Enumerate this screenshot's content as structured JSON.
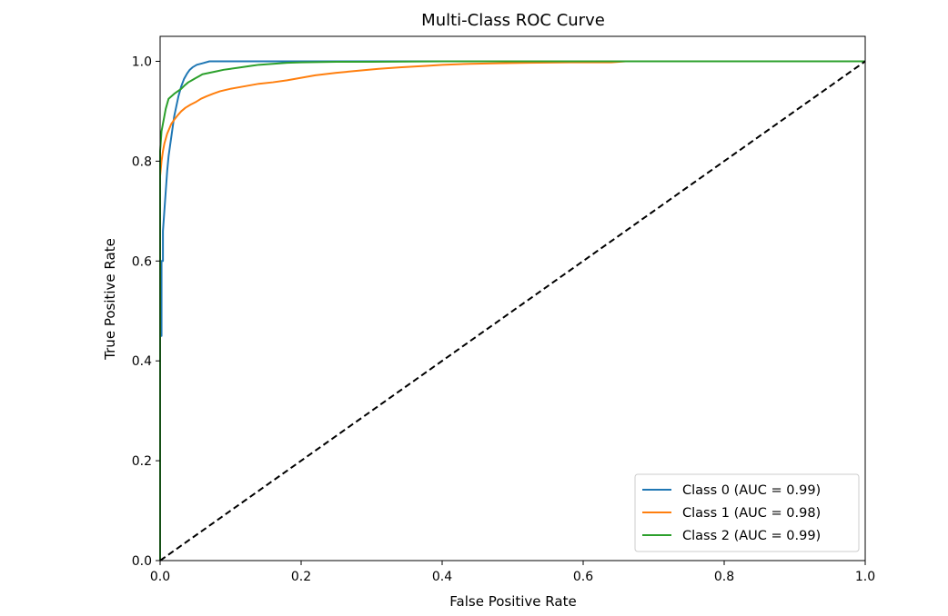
{
  "chart_data": {
    "type": "line",
    "title": "Multi-Class ROC Curve",
    "xlabel": "False Positive Rate",
    "ylabel": "True Positive Rate",
    "xlim": [
      0.0,
      1.0
    ],
    "ylim": [
      0.0,
      1.05
    ],
    "xticks": [
      "0.0",
      "0.2",
      "0.4",
      "0.6",
      "0.8",
      "1.0"
    ],
    "yticks": [
      "0.0",
      "0.2",
      "0.4",
      "0.6",
      "0.8",
      "1.0"
    ],
    "grid": false,
    "legend_position": "lower-right",
    "series": [
      {
        "name": "Class 0 (AUC = 0.99)",
        "color": "#1f77b4",
        "x": [
          0.0,
          0.0,
          0.002,
          0.002,
          0.004,
          0.004,
          0.006,
          0.008,
          0.01,
          0.012,
          0.014,
          0.016,
          0.018,
          0.02,
          0.023,
          0.026,
          0.03,
          0.034,
          0.038,
          0.042,
          0.046,
          0.052,
          0.06,
          0.07,
          0.09,
          0.12,
          0.15,
          0.2,
          0.3,
          0.5,
          0.7,
          1.0
        ],
        "y": [
          0.0,
          0.45,
          0.45,
          0.6,
          0.6,
          0.66,
          0.7,
          0.74,
          0.78,
          0.81,
          0.83,
          0.85,
          0.87,
          0.89,
          0.91,
          0.93,
          0.95,
          0.965,
          0.975,
          0.983,
          0.988,
          0.993,
          0.996,
          1.0,
          1.0,
          1.0,
          1.0,
          1.0,
          1.0,
          1.0,
          1.0,
          1.0
        ]
      },
      {
        "name": "Class 1 (AUC = 0.98)",
        "color": "#ff7f0e",
        "x": [
          0.0,
          0.0,
          0.002,
          0.004,
          0.006,
          0.008,
          0.01,
          0.013,
          0.016,
          0.02,
          0.025,
          0.03,
          0.036,
          0.043,
          0.05,
          0.058,
          0.066,
          0.075,
          0.085,
          0.1,
          0.12,
          0.14,
          0.16,
          0.18,
          0.2,
          0.22,
          0.25,
          0.28,
          0.31,
          0.34,
          0.38,
          0.4,
          0.44,
          0.48,
          0.52,
          0.58,
          0.64,
          0.66,
          0.8,
          1.0
        ],
        "y": [
          0.0,
          0.77,
          0.8,
          0.82,
          0.835,
          0.845,
          0.855,
          0.865,
          0.875,
          0.883,
          0.892,
          0.9,
          0.907,
          0.913,
          0.918,
          0.925,
          0.93,
          0.935,
          0.94,
          0.945,
          0.95,
          0.955,
          0.958,
          0.962,
          0.967,
          0.972,
          0.977,
          0.981,
          0.985,
          0.988,
          0.991,
          0.993,
          0.995,
          0.996,
          0.997,
          0.998,
          0.998,
          1.0,
          1.0,
          1.0
        ]
      },
      {
        "name": "Class 2 (AUC = 0.99)",
        "color": "#2ca02c",
        "x": [
          0.0,
          0.0,
          0.002,
          0.004,
          0.006,
          0.008,
          0.01,
          0.012,
          0.016,
          0.02,
          0.025,
          0.03,
          0.035,
          0.04,
          0.045,
          0.05,
          0.055,
          0.06,
          0.07,
          0.08,
          0.09,
          0.1,
          0.11,
          0.12,
          0.13,
          0.14,
          0.16,
          0.18,
          0.2,
          0.25,
          0.3,
          0.4,
          0.5,
          0.6,
          1.0
        ],
        "y": [
          0.0,
          0.82,
          0.86,
          0.875,
          0.89,
          0.905,
          0.915,
          0.925,
          0.93,
          0.935,
          0.94,
          0.945,
          0.952,
          0.958,
          0.962,
          0.966,
          0.97,
          0.974,
          0.977,
          0.98,
          0.983,
          0.985,
          0.987,
          0.989,
          0.991,
          0.993,
          0.995,
          0.997,
          0.998,
          0.999,
          0.999,
          1.0,
          1.0,
          1.0,
          1.0
        ]
      },
      {
        "name": "",
        "color": "#000000",
        "dash": "dashed",
        "x": [
          0.0,
          1.0
        ],
        "y": [
          0.0,
          1.0
        ]
      }
    ]
  }
}
